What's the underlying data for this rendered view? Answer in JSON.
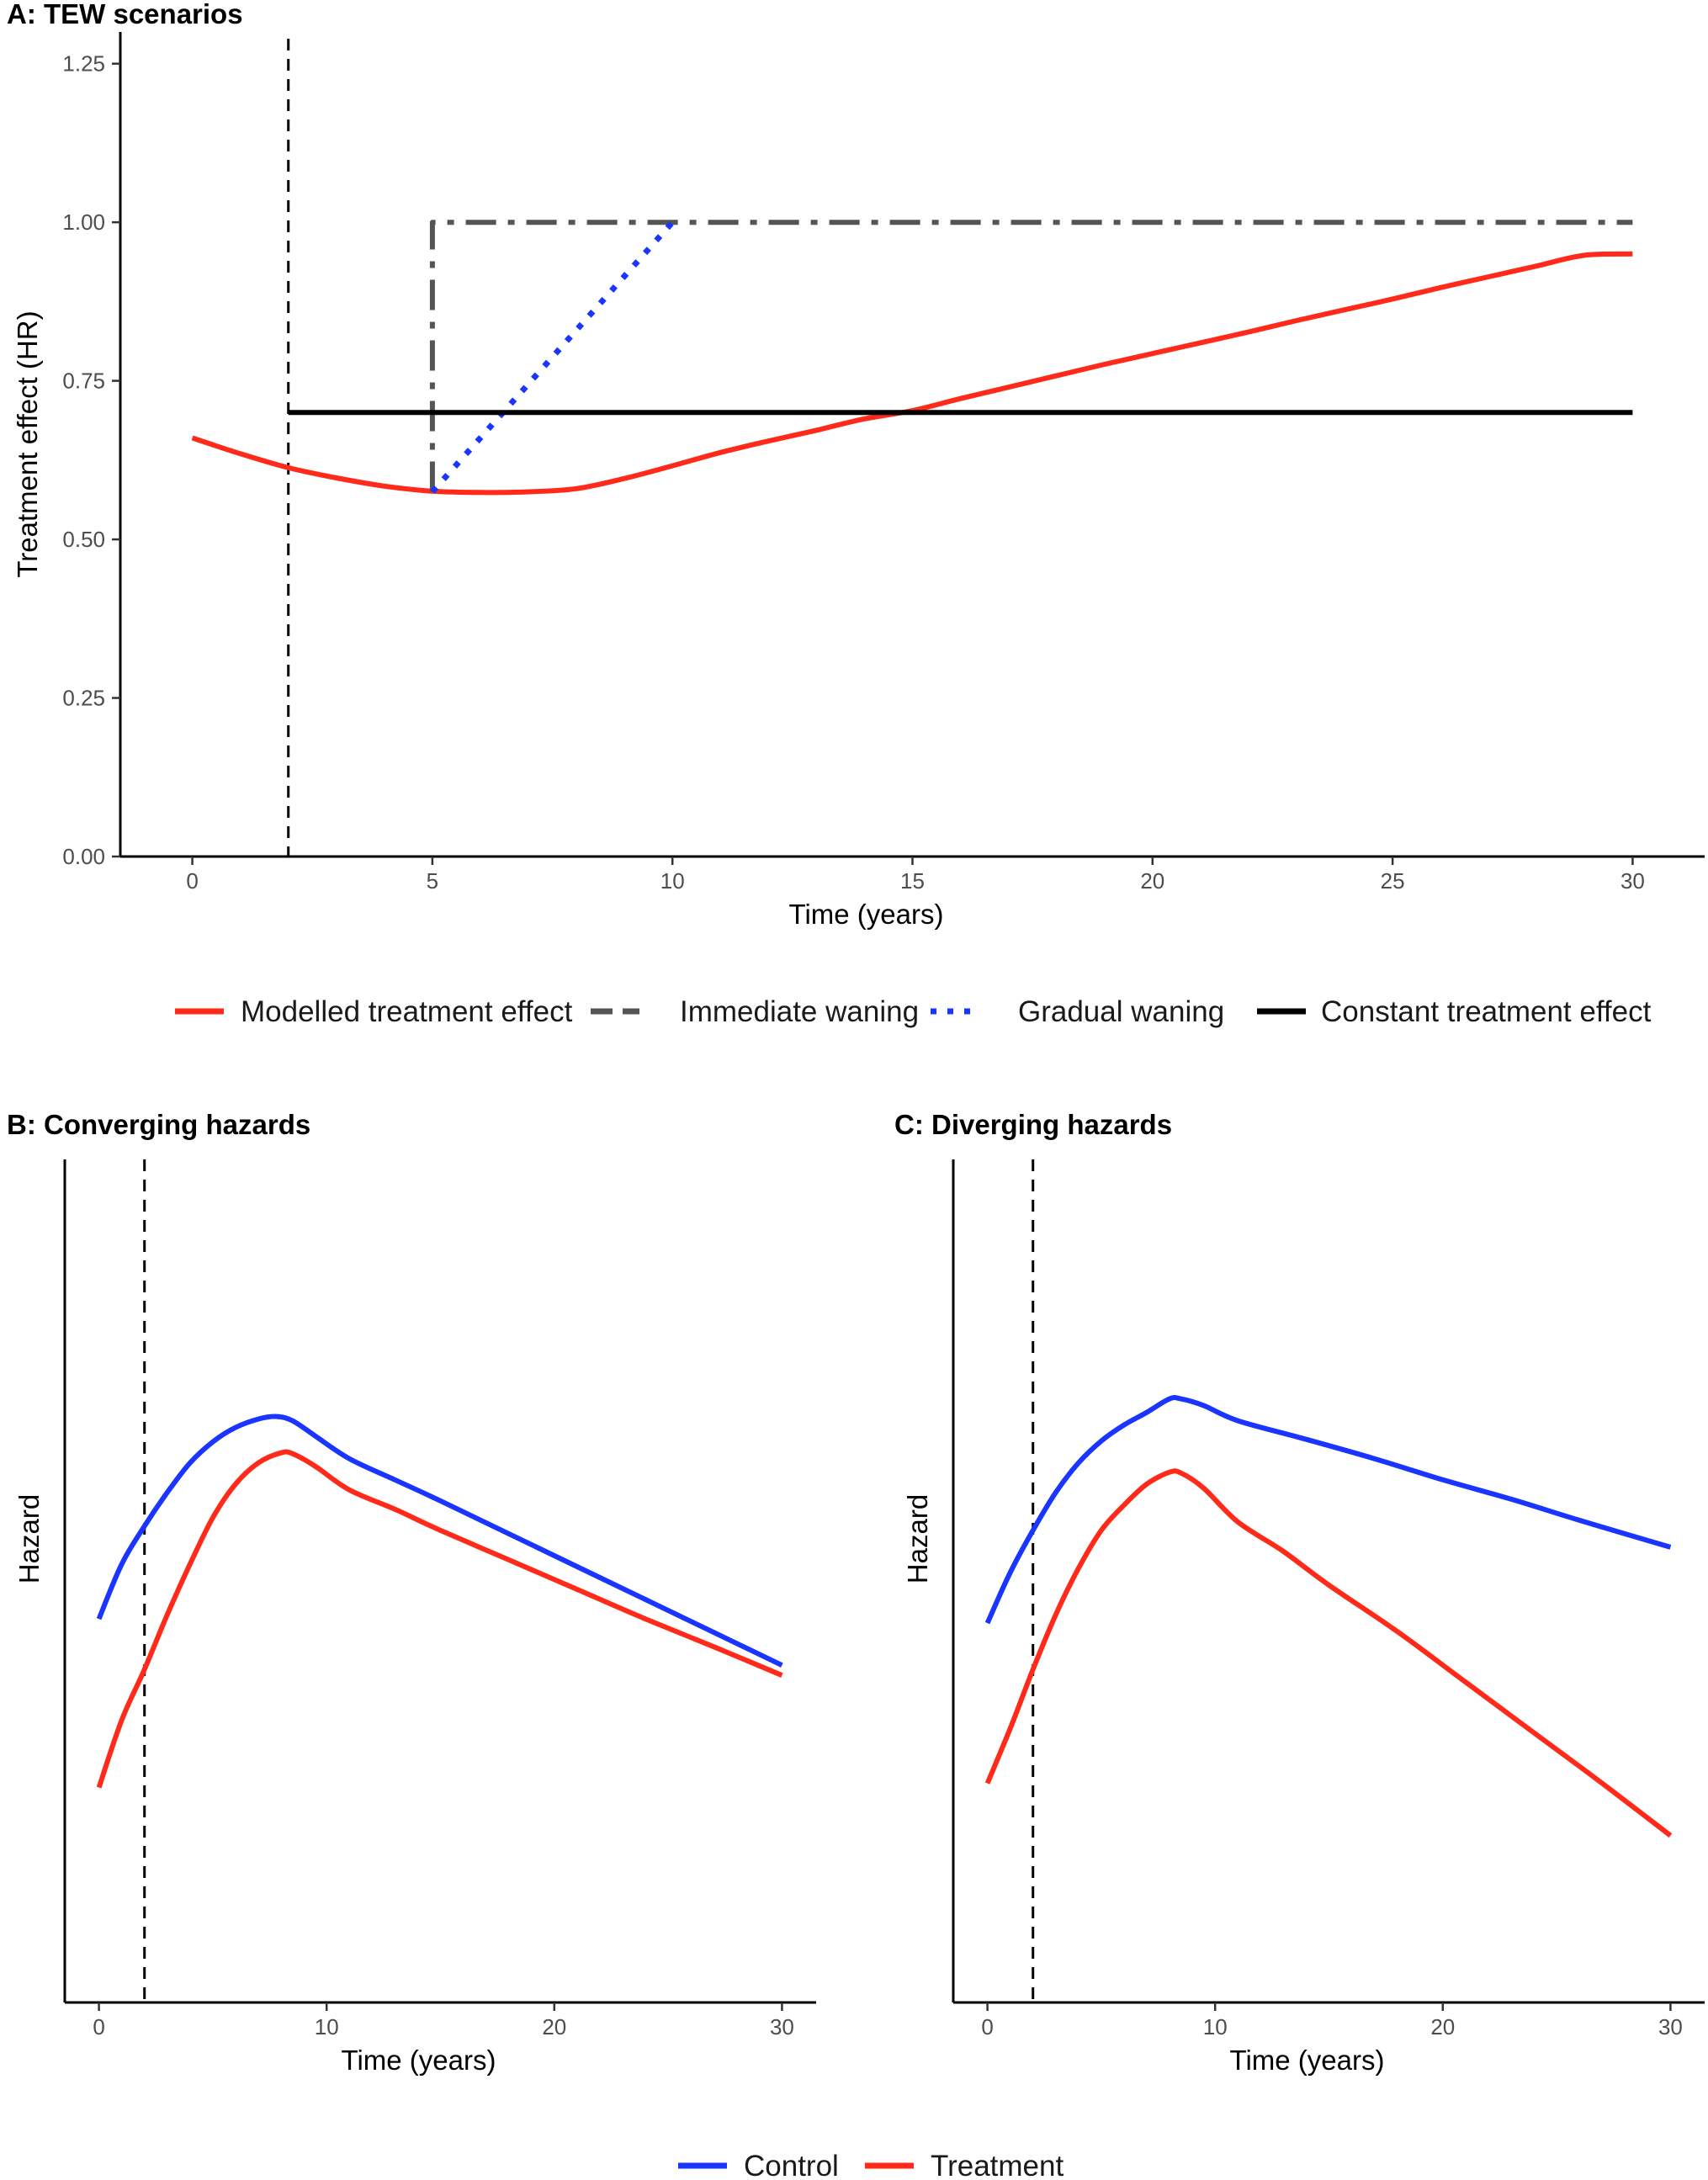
{
  "chart_data": [
    {
      "id": "panel-a",
      "type": "line",
      "title": "A: TEW scenarios",
      "xlabel": "Time (years)",
      "ylabel": "Treatment effect (HR)",
      "xlim": [
        -1.5,
        31.5
      ],
      "ylim": [
        0,
        1.3
      ],
      "xticks": [
        0,
        5,
        10,
        15,
        20,
        25,
        30
      ],
      "yticks": [
        0,
        0.25,
        0.5,
        0.75,
        1.0,
        1.25
      ],
      "ytick_labels": [
        "0.00",
        "0.25",
        "0.50",
        "0.75",
        "1.00",
        "1.25"
      ],
      "grid": false,
      "vline": 2,
      "legend_position": "bottom",
      "series": [
        {
          "name": "Modelled treatment effect",
          "color": "#ff2a1a",
          "style": "solid",
          "x": [
            0,
            1,
            2,
            3,
            4,
            5,
            6,
            7,
            8,
            9,
            10,
            11,
            12,
            13,
            14,
            15,
            16,
            17,
            18,
            19,
            20,
            21,
            22,
            23,
            24,
            25,
            26,
            27,
            28,
            29,
            30
          ],
          "y": [
            0.66,
            0.635,
            0.613,
            0.597,
            0.584,
            0.576,
            0.574,
            0.575,
            0.58,
            0.596,
            0.616,
            0.637,
            0.655,
            0.672,
            0.69,
            0.703,
            0.722,
            0.74,
            0.758,
            0.776,
            0.793,
            0.81,
            0.827,
            0.845,
            0.862,
            0.879,
            0.897,
            0.914,
            0.931,
            0.948,
            0.95
          ]
        },
        {
          "name": "Immediate waning",
          "color": "#555555",
          "style": "dashdot",
          "x": [
            5,
            5,
            30
          ],
          "y": [
            0.575,
            1.0,
            1.0
          ]
        },
        {
          "name": "Gradual waning",
          "color": "#1a35ff",
          "style": "dotted",
          "x": [
            5,
            10
          ],
          "y": [
            0.575,
            1.0
          ]
        },
        {
          "name": "Constant treatment effect",
          "color": "#000000",
          "style": "solid",
          "x": [
            2,
            30
          ],
          "y": [
            0.7,
            0.7
          ]
        }
      ]
    },
    {
      "id": "panel-b",
      "type": "line",
      "title": "B: Converging hazards",
      "xlabel": "Time (years)",
      "ylabel": "Hazard",
      "xlim": [
        -1.5,
        31.5
      ],
      "ylim": [
        0,
        1
      ],
      "xticks": [
        0,
        10,
        20,
        30
      ],
      "grid": false,
      "vline": 2,
      "legend_position": "bottom",
      "series": [
        {
          "name": "Control",
          "color": "#1a35ff",
          "x": [
            0,
            1,
            2,
            3,
            4,
            5,
            6,
            7,
            7.8,
            8.5,
            9.5,
            11,
            13,
            15,
            18,
            21,
            24,
            27,
            30
          ],
          "y": [
            0.455,
            0.52,
            0.565,
            0.605,
            0.64,
            0.665,
            0.682,
            0.692,
            0.695,
            0.69,
            0.672,
            0.645,
            0.62,
            0.595,
            0.556,
            0.517,
            0.478,
            0.439,
            0.4
          ]
        },
        {
          "name": "Treatment",
          "color": "#ff2a1a",
          "x": [
            0,
            1,
            2,
            3,
            4,
            5,
            6,
            7,
            8,
            8.5,
            9.5,
            11,
            13,
            15,
            18,
            21,
            24,
            27,
            30
          ],
          "y": [
            0.255,
            0.335,
            0.395,
            0.46,
            0.52,
            0.575,
            0.615,
            0.64,
            0.652,
            0.651,
            0.636,
            0.608,
            0.585,
            0.56,
            0.525,
            0.49,
            0.455,
            0.422,
            0.388
          ]
        }
      ]
    },
    {
      "id": "panel-c",
      "type": "line",
      "title": "C: Diverging hazards",
      "xlabel": "Time (years)",
      "ylabel": "Hazard",
      "xlim": [
        -1.5,
        31.5
      ],
      "ylim": [
        0,
        1
      ],
      "xticks": [
        0,
        10,
        20,
        30
      ],
      "grid": false,
      "vline": 2,
      "legend_position": "bottom",
      "series": [
        {
          "name": "Control",
          "color": "#1a35ff",
          "x": [
            0,
            1,
            2,
            3,
            4,
            5,
            6,
            7,
            8,
            8.5,
            9.5,
            11,
            14,
            17,
            20,
            23,
            26,
            30
          ],
          "y": [
            0.45,
            0.51,
            0.56,
            0.605,
            0.64,
            0.666,
            0.685,
            0.7,
            0.716,
            0.716,
            0.708,
            0.69,
            0.668,
            0.645,
            0.62,
            0.597,
            0.572,
            0.54
          ]
        },
        {
          "name": "Treatment",
          "color": "#ff2a1a",
          "x": [
            0,
            1,
            2,
            3,
            4,
            5,
            6,
            7,
            8,
            8.5,
            9.5,
            11,
            13,
            15,
            18,
            21,
            24,
            27,
            30
          ],
          "y": [
            0.26,
            0.325,
            0.395,
            0.46,
            0.515,
            0.56,
            0.59,
            0.615,
            0.629,
            0.628,
            0.61,
            0.57,
            0.535,
            0.495,
            0.44,
            0.38,
            0.32,
            0.26,
            0.198
          ]
        }
      ]
    }
  ],
  "legend_a": [
    {
      "label": "Modelled treatment effect",
      "color": "#ff2a1a",
      "style": "solid"
    },
    {
      "label": "Immediate waning",
      "color": "#555555",
      "style": "dashed"
    },
    {
      "label": "Gradual waning",
      "color": "#1a35ff",
      "style": "dotted"
    },
    {
      "label": "Constant treatment effect",
      "color": "#000000",
      "style": "solid"
    }
  ],
  "legend_bc": [
    {
      "label": "Control",
      "color": "#1a35ff"
    },
    {
      "label": "Treatment",
      "color": "#ff2a1a"
    }
  ]
}
